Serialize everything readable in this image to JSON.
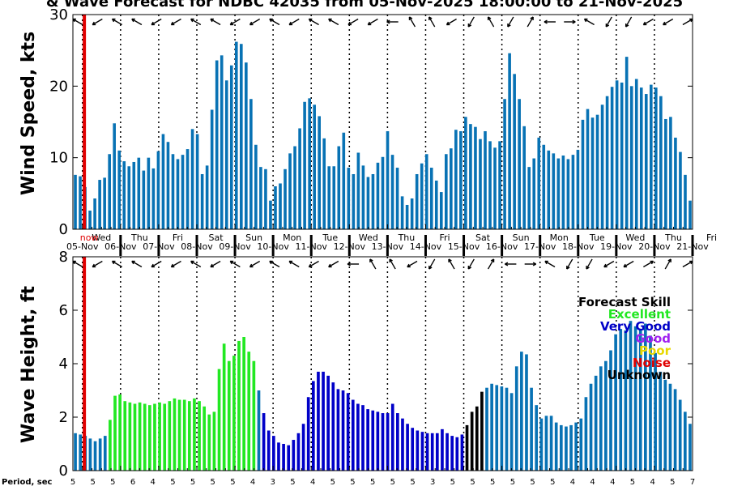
{
  "title": "& Wave Forecast for NDBC 42035 from 05-Nov-2025 18:00:00 to 21-Nov-2025",
  "now_label": "now",
  "period_label": "Period, sec",
  "colors": {
    "blue": "#0872b4",
    "excellent": "#22e822",
    "very_good": "#0000c8",
    "good": "#a020f0",
    "poor": "#e8d800",
    "noise": "#e00000",
    "unknown": "#000000",
    "now_line": "#e00000"
  },
  "chart_data": [
    {
      "type": "bar",
      "name": "wind",
      "ylabel": "Wind Speed, kts",
      "ylim": [
        0,
        30
      ],
      "yticks": [
        "0",
        "10",
        "20",
        "30"
      ],
      "x_start_day": -0.25,
      "x_end_day": 16.0,
      "values": [
        7.6,
        7.4,
        5.9,
        2.6,
        4.3,
        6.9,
        7.2,
        10.5,
        14.8,
        11.0,
        9.5,
        8.8,
        9.4,
        10.0,
        8.2,
        10.0,
        8.5,
        10.9,
        13.3,
        12.2,
        10.5,
        9.8,
        10.4,
        11.2,
        14.0,
        13.3,
        7.7,
        8.9,
        16.7,
        23.6,
        24.3,
        20.8,
        22.9,
        26.2,
        25.9,
        23.3,
        18.2,
        11.8,
        8.7,
        8.4,
        4.0,
        6.0,
        6.4,
        8.4,
        10.6,
        11.6,
        14.1,
        17.8,
        18.3,
        17.4,
        15.8,
        12.7,
        8.8,
        8.8,
        11.6,
        13.5,
        8.6,
        7.7,
        10.7,
        8.9,
        7.3,
        7.7,
        9.3,
        10.1,
        13.7,
        10.4,
        8.6,
        4.6,
        3.4,
        4.3,
        7.7,
        9.2,
        10.5,
        8.6,
        6.8,
        5.2,
        10.5,
        11.3,
        13.9,
        13.7,
        15.7,
        14.7,
        14.3,
        12.6,
        13.7,
        12.3,
        11.4,
        12.3,
        18.2,
        24.6,
        21.7,
        18.2,
        14.4,
        8.7,
        9.9,
        12.8,
        11.8,
        11.0,
        10.6,
        9.9,
        10.3,
        9.8,
        10.4,
        11.1,
        15.3,
        16.8,
        15.6,
        16.0,
        17.4,
        18.6,
        19.9,
        20.8,
        20.5,
        24.1,
        20.0,
        21.0,
        19.8,
        18.9,
        20.2,
        19.8,
        18.6,
        15.4,
        15.7,
        12.8,
        10.8,
        7.6,
        4.0
      ],
      "direction_arrows_deg": [
        300,
        240,
        300,
        300,
        240,
        240,
        300,
        300,
        240,
        240,
        300,
        240,
        300,
        300,
        240,
        240,
        270,
        330,
        330,
        240,
        210,
        330,
        210,
        30,
        270,
        90,
        300,
        210,
        210,
        240,
        240,
        60
      ]
    },
    {
      "type": "bar",
      "name": "waves",
      "ylabel": "Wave Height, ft",
      "ylim": [
        0,
        8
      ],
      "yticks": [
        "0",
        "2",
        "4",
        "6",
        "8"
      ],
      "x_start_day": -0.25,
      "x_end_day": 16.0,
      "values": [
        1.4,
        1.35,
        1.3,
        1.2,
        1.1,
        1.2,
        1.3,
        1.9,
        2.8,
        2.85,
        2.6,
        2.55,
        2.5,
        2.55,
        2.5,
        2.45,
        2.5,
        2.55,
        2.5,
        2.6,
        2.7,
        2.65,
        2.65,
        2.6,
        2.7,
        2.6,
        2.4,
        2.1,
        2.2,
        3.8,
        4.75,
        4.1,
        4.3,
        4.85,
        5.0,
        4.45,
        4.1,
        3.0,
        2.15,
        1.5,
        1.3,
        1.05,
        1.0,
        0.95,
        1.15,
        1.4,
        1.75,
        2.75,
        3.35,
        3.7,
        3.7,
        3.55,
        3.3,
        3.05,
        3.0,
        2.9,
        2.65,
        2.5,
        2.45,
        2.3,
        2.25,
        2.2,
        2.15,
        2.15,
        2.5,
        2.15,
        1.95,
        1.75,
        1.6,
        1.5,
        1.45,
        1.4,
        1.4,
        1.4,
        1.55,
        1.4,
        1.3,
        1.25,
        1.35,
        1.7,
        2.2,
        2.4,
        2.95,
        3.1,
        3.25,
        3.2,
        3.15,
        3.1,
        2.9,
        3.9,
        4.45,
        4.35,
        3.1,
        2.45,
        1.95,
        2.05,
        2.05,
        1.8,
        1.7,
        1.65,
        1.7,
        1.8,
        1.95,
        2.75,
        3.25,
        3.55,
        3.9,
        4.1,
        4.5,
        5.1,
        5.3,
        5.25,
        5.6,
        5.4,
        5.3,
        5.5,
        5.05,
        4.4,
        3.7,
        3.4,
        3.25,
        3.05,
        2.65,
        2.2,
        1.75
      ],
      "quality": [
        "U",
        "U",
        "U",
        "U",
        "U",
        "U",
        "U",
        "E",
        "E",
        "E",
        "E",
        "E",
        "E",
        "E",
        "E",
        "E",
        "E",
        "E",
        "E",
        "E",
        "E",
        "E",
        "E",
        "E",
        "E",
        "E",
        "E",
        "E",
        "E",
        "E",
        "E",
        "E",
        "E",
        "E",
        "E",
        "E",
        "E",
        "B",
        "V",
        "V",
        "V",
        "V",
        "V",
        "V",
        "V",
        "V",
        "V",
        "V",
        "V",
        "V",
        "V",
        "V",
        "V",
        "V",
        "V",
        "V",
        "V",
        "V",
        "V",
        "V",
        "V",
        "V",
        "V",
        "V",
        "V",
        "V",
        "V",
        "V",
        "V",
        "V",
        "V",
        "V",
        "V",
        "V",
        "V",
        "V",
        "V",
        "V",
        "V",
        "K",
        "K",
        "K",
        "K",
        "B",
        "B",
        "B",
        "B",
        "B",
        "B",
        "B",
        "B",
        "B",
        "B",
        "B",
        "B",
        "B",
        "B",
        "B",
        "B",
        "B",
        "B",
        "B",
        "B",
        "B",
        "B",
        "B",
        "B",
        "B",
        "B",
        "B",
        "B",
        "B",
        "B",
        "B",
        "B",
        "B",
        "B",
        "B",
        "B",
        "B",
        "B",
        "B",
        "B",
        "B",
        "B"
      ],
      "direction_arrows_deg": [
        300,
        240,
        300,
        300,
        240,
        240,
        300,
        240,
        300,
        240,
        300,
        300,
        240,
        240,
        270,
        330,
        330,
        240,
        210,
        330,
        210,
        30,
        270,
        90,
        300,
        210,
        210,
        240,
        240,
        60,
        30,
        60
      ]
    }
  ],
  "day_labels": [
    {
      "day": "Wed",
      "date": "05-Nov"
    },
    {
      "day": "Thu",
      "date": "06-Nov"
    },
    {
      "day": "Fri",
      "date": "07-Nov"
    },
    {
      "day": "Sat",
      "date": "08-Nov"
    },
    {
      "day": "Sun",
      "date": "09-Nov"
    },
    {
      "day": "Mon",
      "date": "10-Nov"
    },
    {
      "day": "Tue",
      "date": "11-Nov"
    },
    {
      "day": "Wed",
      "date": "12-Nov"
    },
    {
      "day": "Thu",
      "date": "13-Nov"
    },
    {
      "day": "Fri",
      "date": "14-Nov"
    },
    {
      "day": "Sat",
      "date": "15-Nov"
    },
    {
      "day": "Sun",
      "date": "16-Nov"
    },
    {
      "day": "Mon",
      "date": "17-Nov"
    },
    {
      "day": "Tue",
      "date": "18-Nov"
    },
    {
      "day": "Wed",
      "date": "19-Nov"
    },
    {
      "day": "Thu",
      "date": "20-Nov"
    },
    {
      "day": "Fri",
      "date": "21-Nov"
    }
  ],
  "skill_legend": [
    {
      "label": "Forecast Skill",
      "color": "#000000"
    },
    {
      "label": "Excellent",
      "color": "#22e822"
    },
    {
      "label": "Very Good",
      "color": "#0000c8"
    },
    {
      "label": "Good",
      "color": "#a020f0"
    },
    {
      "label": "Poor",
      "color": "#e8d800"
    },
    {
      "label": "Noise",
      "color": "#e00000"
    },
    {
      "label": "Unknown",
      "color": "#000000"
    }
  ],
  "periods": [
    "5",
    "5",
    "5",
    "6",
    "4",
    "5",
    "5",
    "5",
    "5",
    "4",
    "3",
    "5",
    "4",
    "5",
    "5",
    "5",
    "5",
    "5",
    "3",
    "5",
    "5",
    "5",
    "5",
    "5",
    "5",
    "4",
    "4",
    "4",
    "5",
    "4",
    "5",
    "7"
  ]
}
